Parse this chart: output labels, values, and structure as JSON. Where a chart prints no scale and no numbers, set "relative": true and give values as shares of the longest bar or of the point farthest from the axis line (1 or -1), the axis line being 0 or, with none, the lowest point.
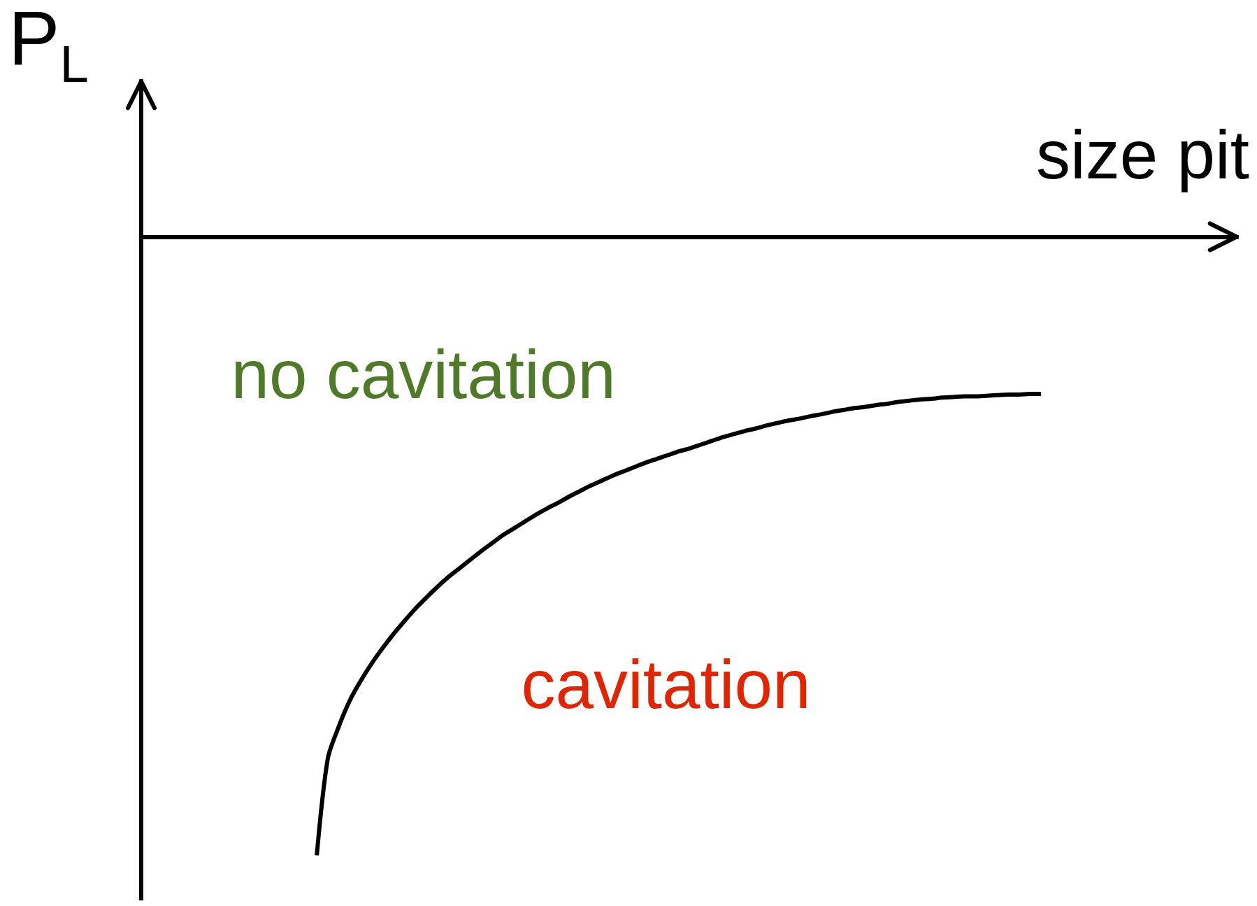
{
  "chart_data": {
    "type": "line",
    "xlabel": "size pit",
    "ylabel": "P$_{L}$",
    "relative": true,
    "marker": "none",
    "line_style": "solid",
    "color": "#000000",
    "categories": [
      null,
      null,
      null,
      null,
      null,
      null,
      null,
      null,
      null,
      null,
      null,
      null,
      null,
      null,
      null,
      null,
      null,
      null,
      null,
      null,
      null,
      null,
      null,
      null,
      null,
      null,
      null,
      null,
      null,
      null,
      null,
      null,
      null,
      null,
      null,
      null,
      null,
      null,
      null,
      null,
      null,
      null,
      null,
      null,
      null,
      null,
      null,
      null,
      null,
      null,
      null,
      null,
      null,
      null,
      null,
      null,
      null,
      null,
      null,
      null,
      null,
      null,
      null,
      null,
      null,
      null,
      null,
      null,
      null,
      null,
      null,
      null,
      null,
      null,
      null,
      null,
      null,
      null,
      null,
      null,
      null,
      null,
      null,
      null,
      null,
      null,
      null,
      null,
      null,
      null,
      null,
      null,
      null,
      null,
      null,
      null,
      null,
      null,
      null,
      null,
      null
    ],
    "values": [
      null,
      null,
      null,
      null,
      null,
      null,
      null,
      null,
      null,
      null,
      null,
      null,
      null,
      null,
      null,
      null,
      -1,
      -0.844,
      -0.792,
      -0.75,
      -0.718,
      -0.69,
      -0.665,
      -0.642,
      -0.621,
      -0.601,
      -0.583,
      -0.566,
      -0.55,
      -0.536,
      -0.522,
      -0.508,
      -0.495,
      -0.482,
      -0.471,
      -0.46,
      -0.449,
      -0.439,
      -0.43,
      -0.42,
      -0.411,
      -0.402,
      -0.394,
      -0.386,
      -0.379,
      -0.372,
      -0.365,
      -0.359,
      -0.353,
      -0.347,
      -0.342,
      -0.336,
      -0.33,
      -0.324,
      -0.319,
      -0.314,
      -0.31,
      -0.305,
      -0.301,
      -0.297,
      -0.294,
      -0.29,
      -0.287,
      -0.283,
      -0.28,
      -0.277,
      -0.275,
      -0.272,
      -0.27,
      -0.267,
      -0.265,
      -0.263,
      -0.262,
      -0.26,
      -0.259,
      -0.258,
      -0.258,
      -0.257,
      -0.256,
      -0.255,
      -0.255,
      -0.254,
      -0.254,
      null,
      null,
      null,
      null,
      null,
      null,
      null,
      null,
      null,
      null,
      null,
      null,
      null,
      null,
      null,
      null,
      null,
      null
    ],
    "annotations": [
      "no cavitation",
      "cavitation"
    ]
  }
}
